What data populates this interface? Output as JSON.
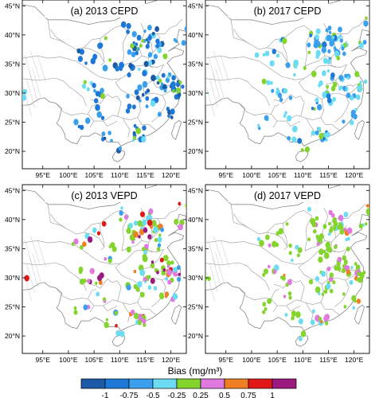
{
  "panels": [
    {
      "id": "a",
      "title": "(a) 2013 CEPD",
      "seed": 11
    },
    {
      "id": "b",
      "title": "(b) 2017 CEPD",
      "seed": 23
    },
    {
      "id": "c",
      "title": "(c) 2013 VEPD",
      "seed": 37
    },
    {
      "id": "d",
      "title": "(d) 2017 VEPD",
      "seed": 51
    }
  ],
  "axes": {
    "lon_ticks": [
      "95°E",
      "100°E",
      "105°E",
      "110°E",
      "115°E",
      "120°E"
    ],
    "lat_ticks": [
      "20°N",
      "25°N",
      "30°N",
      "35°N",
      "40°N",
      "45°N"
    ],
    "lon_values": [
      95,
      100,
      105,
      110,
      115,
      120
    ],
    "lat_values": [
      20,
      25,
      30,
      35,
      40,
      45
    ],
    "lon_range": [
      91,
      123
    ],
    "lat_range": [
      17,
      46
    ]
  },
  "colorbar": {
    "title": "Bias (mg/m³)",
    "labels": [
      "-1",
      "-0.75",
      "-0.5",
      "-0.25",
      "0.25",
      "0.5",
      "0.75",
      "1"
    ],
    "colors": [
      "#1c5aa6",
      "#1e78d8",
      "#3aa0ee",
      "#6cdcf2",
      "#84d42e",
      "#e07ae0",
      "#f07f24",
      "#e01818",
      "#9a1a80"
    ]
  }
}
